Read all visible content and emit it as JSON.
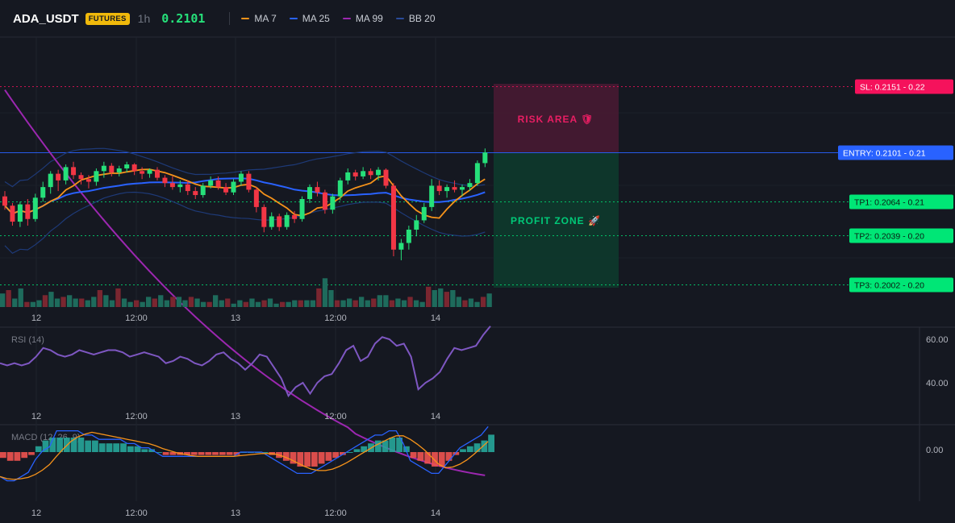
{
  "header": {
    "symbol": "ADA_USDT",
    "market_badge": "FUTURES",
    "interval": "1h",
    "last_price": "0.2101",
    "indicators": [
      {
        "label": "MA 7",
        "color": "#f7931a"
      },
      {
        "label": "MA 25",
        "color": "#2962ff"
      },
      {
        "label": "MA 99",
        "color": "#9c27b0"
      },
      {
        "label": "BB 20",
        "color": "#1e3a78"
      }
    ]
  },
  "trade_zones": {
    "risk_label": "RISK AREA 🛡",
    "profit_label": "PROFIT ZONE 🚀",
    "risk_color": "#e91e63",
    "profit_color": "#00e676"
  },
  "levels": [
    {
      "label": "SL: 0.2151",
      "axis": "0.22",
      "value": 0.2151,
      "color": "#f5125c",
      "style": "dotted"
    },
    {
      "label": "ENTRY: 0.2101",
      "axis": "0.21",
      "value": 0.2101,
      "color": "#2962ff",
      "style": "solid"
    },
    {
      "label": "TP1: 0.2064",
      "axis": "0.21",
      "value": 0.2064,
      "color": "#00e676",
      "style": "dotted"
    },
    {
      "label": "TP2: 0.2039",
      "axis": "0.20",
      "value": 0.2039,
      "color": "#00e676",
      "style": "dotted"
    },
    {
      "label": "TP3: 0.2002",
      "axis": "0.20",
      "value": 0.2002,
      "color": "#00e676",
      "style": "dotted"
    }
  ],
  "time_labels": [
    "12",
    "12:00",
    "13",
    "12:00",
    "14"
  ],
  "rsi": {
    "label": "RSI (14)",
    "ticks": [
      "60.00",
      "40.00"
    ]
  },
  "macd": {
    "label": "MACD (12, 26, 9)",
    "ticks": [
      "0.00"
    ]
  },
  "chart_data": {
    "type": "candlestick",
    "interval": "1h",
    "up_color": "#26e07a",
    "down_color": "#f23645",
    "candles": [
      [
        0.2068,
        0.2072,
        0.2058,
        0.2061
      ],
      [
        0.2061,
        0.2063,
        0.2046,
        0.2049
      ],
      [
        0.2049,
        0.2064,
        0.2045,
        0.2062
      ],
      [
        0.2062,
        0.2066,
        0.2046,
        0.2051
      ],
      [
        0.2051,
        0.207,
        0.2049,
        0.2067
      ],
      [
        0.2067,
        0.2079,
        0.2064,
        0.2075
      ],
      [
        0.2075,
        0.2087,
        0.207,
        0.2085
      ],
      [
        0.2085,
        0.2088,
        0.2072,
        0.208
      ],
      [
        0.208,
        0.2092,
        0.2077,
        0.209
      ],
      [
        0.209,
        0.2094,
        0.2081,
        0.2084
      ],
      [
        0.2084,
        0.2086,
        0.2077,
        0.2081
      ],
      [
        0.2081,
        0.2084,
        0.2074,
        0.2079
      ],
      [
        0.2079,
        0.2089,
        0.2076,
        0.2087
      ],
      [
        0.2087,
        0.2094,
        0.2082,
        0.2091
      ],
      [
        0.2091,
        0.2093,
        0.2083,
        0.2086
      ],
      [
        0.2086,
        0.2091,
        0.2083,
        0.2089
      ],
      [
        0.2089,
        0.2094,
        0.2086,
        0.2092
      ],
      [
        0.2092,
        0.2093,
        0.2084,
        0.2087
      ],
      [
        0.2087,
        0.209,
        0.2081,
        0.2085
      ],
      [
        0.2085,
        0.2089,
        0.2082,
        0.2088
      ],
      [
        0.2088,
        0.209,
        0.208,
        0.2082
      ],
      [
        0.2082,
        0.2084,
        0.2075,
        0.2078
      ],
      [
        0.2078,
        0.2083,
        0.2073,
        0.2075
      ],
      [
        0.2075,
        0.208,
        0.2071,
        0.2077
      ],
      [
        0.2077,
        0.208,
        0.2069,
        0.2072
      ],
      [
        0.2072,
        0.2075,
        0.2066,
        0.2069
      ],
      [
        0.2069,
        0.2078,
        0.2067,
        0.2076
      ],
      [
        0.2076,
        0.2083,
        0.2074,
        0.208
      ],
      [
        0.208,
        0.2083,
        0.2073,
        0.2075
      ],
      [
        0.2075,
        0.2078,
        0.2069,
        0.2071
      ],
      [
        0.2071,
        0.2081,
        0.2069,
        0.2079
      ],
      [
        0.2079,
        0.2087,
        0.2076,
        0.2085
      ],
      [
        0.2085,
        0.2087,
        0.2071,
        0.2073
      ],
      [
        0.2073,
        0.2075,
        0.2056,
        0.206
      ],
      [
        0.206,
        0.2062,
        0.2041,
        0.2045
      ],
      [
        0.2045,
        0.2056,
        0.2043,
        0.2053
      ],
      [
        0.2053,
        0.2055,
        0.2042,
        0.2045
      ],
      [
        0.2045,
        0.2056,
        0.2043,
        0.2054
      ],
      [
        0.2054,
        0.2057,
        0.2048,
        0.2051
      ],
      [
        0.2051,
        0.2068,
        0.2049,
        0.2066
      ],
      [
        0.2066,
        0.2077,
        0.2063,
        0.2075
      ],
      [
        0.2075,
        0.2079,
        0.2068,
        0.2071
      ],
      [
        0.2071,
        0.2073,
        0.2055,
        0.2058
      ],
      [
        0.2058,
        0.207,
        0.2055,
        0.2068
      ],
      [
        0.2068,
        0.2082,
        0.2065,
        0.208
      ],
      [
        0.208,
        0.2089,
        0.2077,
        0.2086
      ],
      [
        0.2086,
        0.2088,
        0.208,
        0.2083
      ],
      [
        0.2083,
        0.209,
        0.2081,
        0.2087
      ],
      [
        0.2087,
        0.2089,
        0.2081,
        0.2084
      ],
      [
        0.2084,
        0.209,
        0.208,
        0.2088
      ],
      [
        0.2088,
        0.2089,
        0.2074,
        0.2076
      ],
      [
        0.2076,
        0.2078,
        0.2023,
        0.2028
      ],
      [
        0.2028,
        0.2036,
        0.202,
        0.2033
      ],
      [
        0.2033,
        0.2046,
        0.2028,
        0.2043
      ],
      [
        0.2043,
        0.2054,
        0.2038,
        0.205
      ],
      [
        0.205,
        0.2063,
        0.2048,
        0.206
      ],
      [
        0.206,
        0.2081,
        0.2057,
        0.2076
      ],
      [
        0.2076,
        0.208,
        0.2069,
        0.2072
      ],
      [
        0.2072,
        0.2077,
        0.2067,
        0.2075
      ],
      [
        0.2075,
        0.208,
        0.2071,
        0.2073
      ],
      [
        0.2073,
        0.2077,
        0.2068,
        0.2075
      ],
      [
        0.2075,
        0.2081,
        0.2072,
        0.2078
      ],
      [
        0.2078,
        0.2095,
        0.2076,
        0.2093
      ],
      [
        0.2093,
        0.2104,
        0.209,
        0.2101
      ]
    ],
    "volume": [
      8,
      10,
      5,
      11,
      3,
      3,
      4,
      7,
      9,
      5,
      6,
      7,
      5,
      5,
      4,
      6,
      10,
      7,
      4,
      11,
      5,
      3,
      4,
      3,
      6,
      5,
      7,
      4,
      6,
      6,
      4,
      6,
      5,
      3,
      3,
      7,
      4,
      5,
      2,
      4,
      3,
      5,
      3,
      4,
      5,
      2,
      3,
      3,
      4,
      4,
      4,
      4,
      11,
      17,
      10,
      4,
      4,
      5,
      4,
      6,
      4,
      5,
      7,
      7,
      4,
      5,
      4,
      6,
      4,
      3,
      12,
      10,
      11,
      9,
      10,
      6,
      4,
      5,
      3,
      6,
      8
    ],
    "rsi": [
      49,
      48,
      49,
      48,
      49,
      52,
      56,
      55,
      53,
      52,
      53,
      55,
      54,
      53,
      54,
      55,
      55,
      54,
      52,
      53,
      54,
      53,
      52,
      49,
      50,
      52,
      51,
      49,
      48,
      50,
      53,
      54,
      51,
      49,
      46,
      49,
      53,
      52,
      47,
      42,
      34,
      38,
      40,
      35,
      40,
      43,
      44,
      49,
      55,
      57,
      50,
      52,
      58,
      61,
      60,
      57,
      58,
      52,
      37,
      40,
      42,
      45,
      51,
      56,
      55,
      56,
      57,
      62,
      66
    ],
    "macd_hist": [
      -2,
      -3,
      -3,
      -2,
      -1,
      2,
      4,
      5,
      5,
      5,
      5,
      5,
      4,
      4,
      3,
      3,
      3,
      3,
      2,
      2,
      1,
      1,
      0,
      -1,
      -1,
      -1,
      -1,
      -1,
      -1,
      -1,
      -1,
      -1,
      -1,
      -1,
      0,
      0,
      0,
      0,
      -1,
      -2,
      -3,
      -4,
      -5,
      -5,
      -5,
      -4,
      -3,
      -2,
      -1,
      0,
      1,
      2,
      3,
      4,
      4,
      5,
      5,
      2,
      -2,
      -3,
      -4,
      -5,
      -5,
      -3,
      -1,
      1,
      2,
      3,
      4,
      6
    ]
  }
}
